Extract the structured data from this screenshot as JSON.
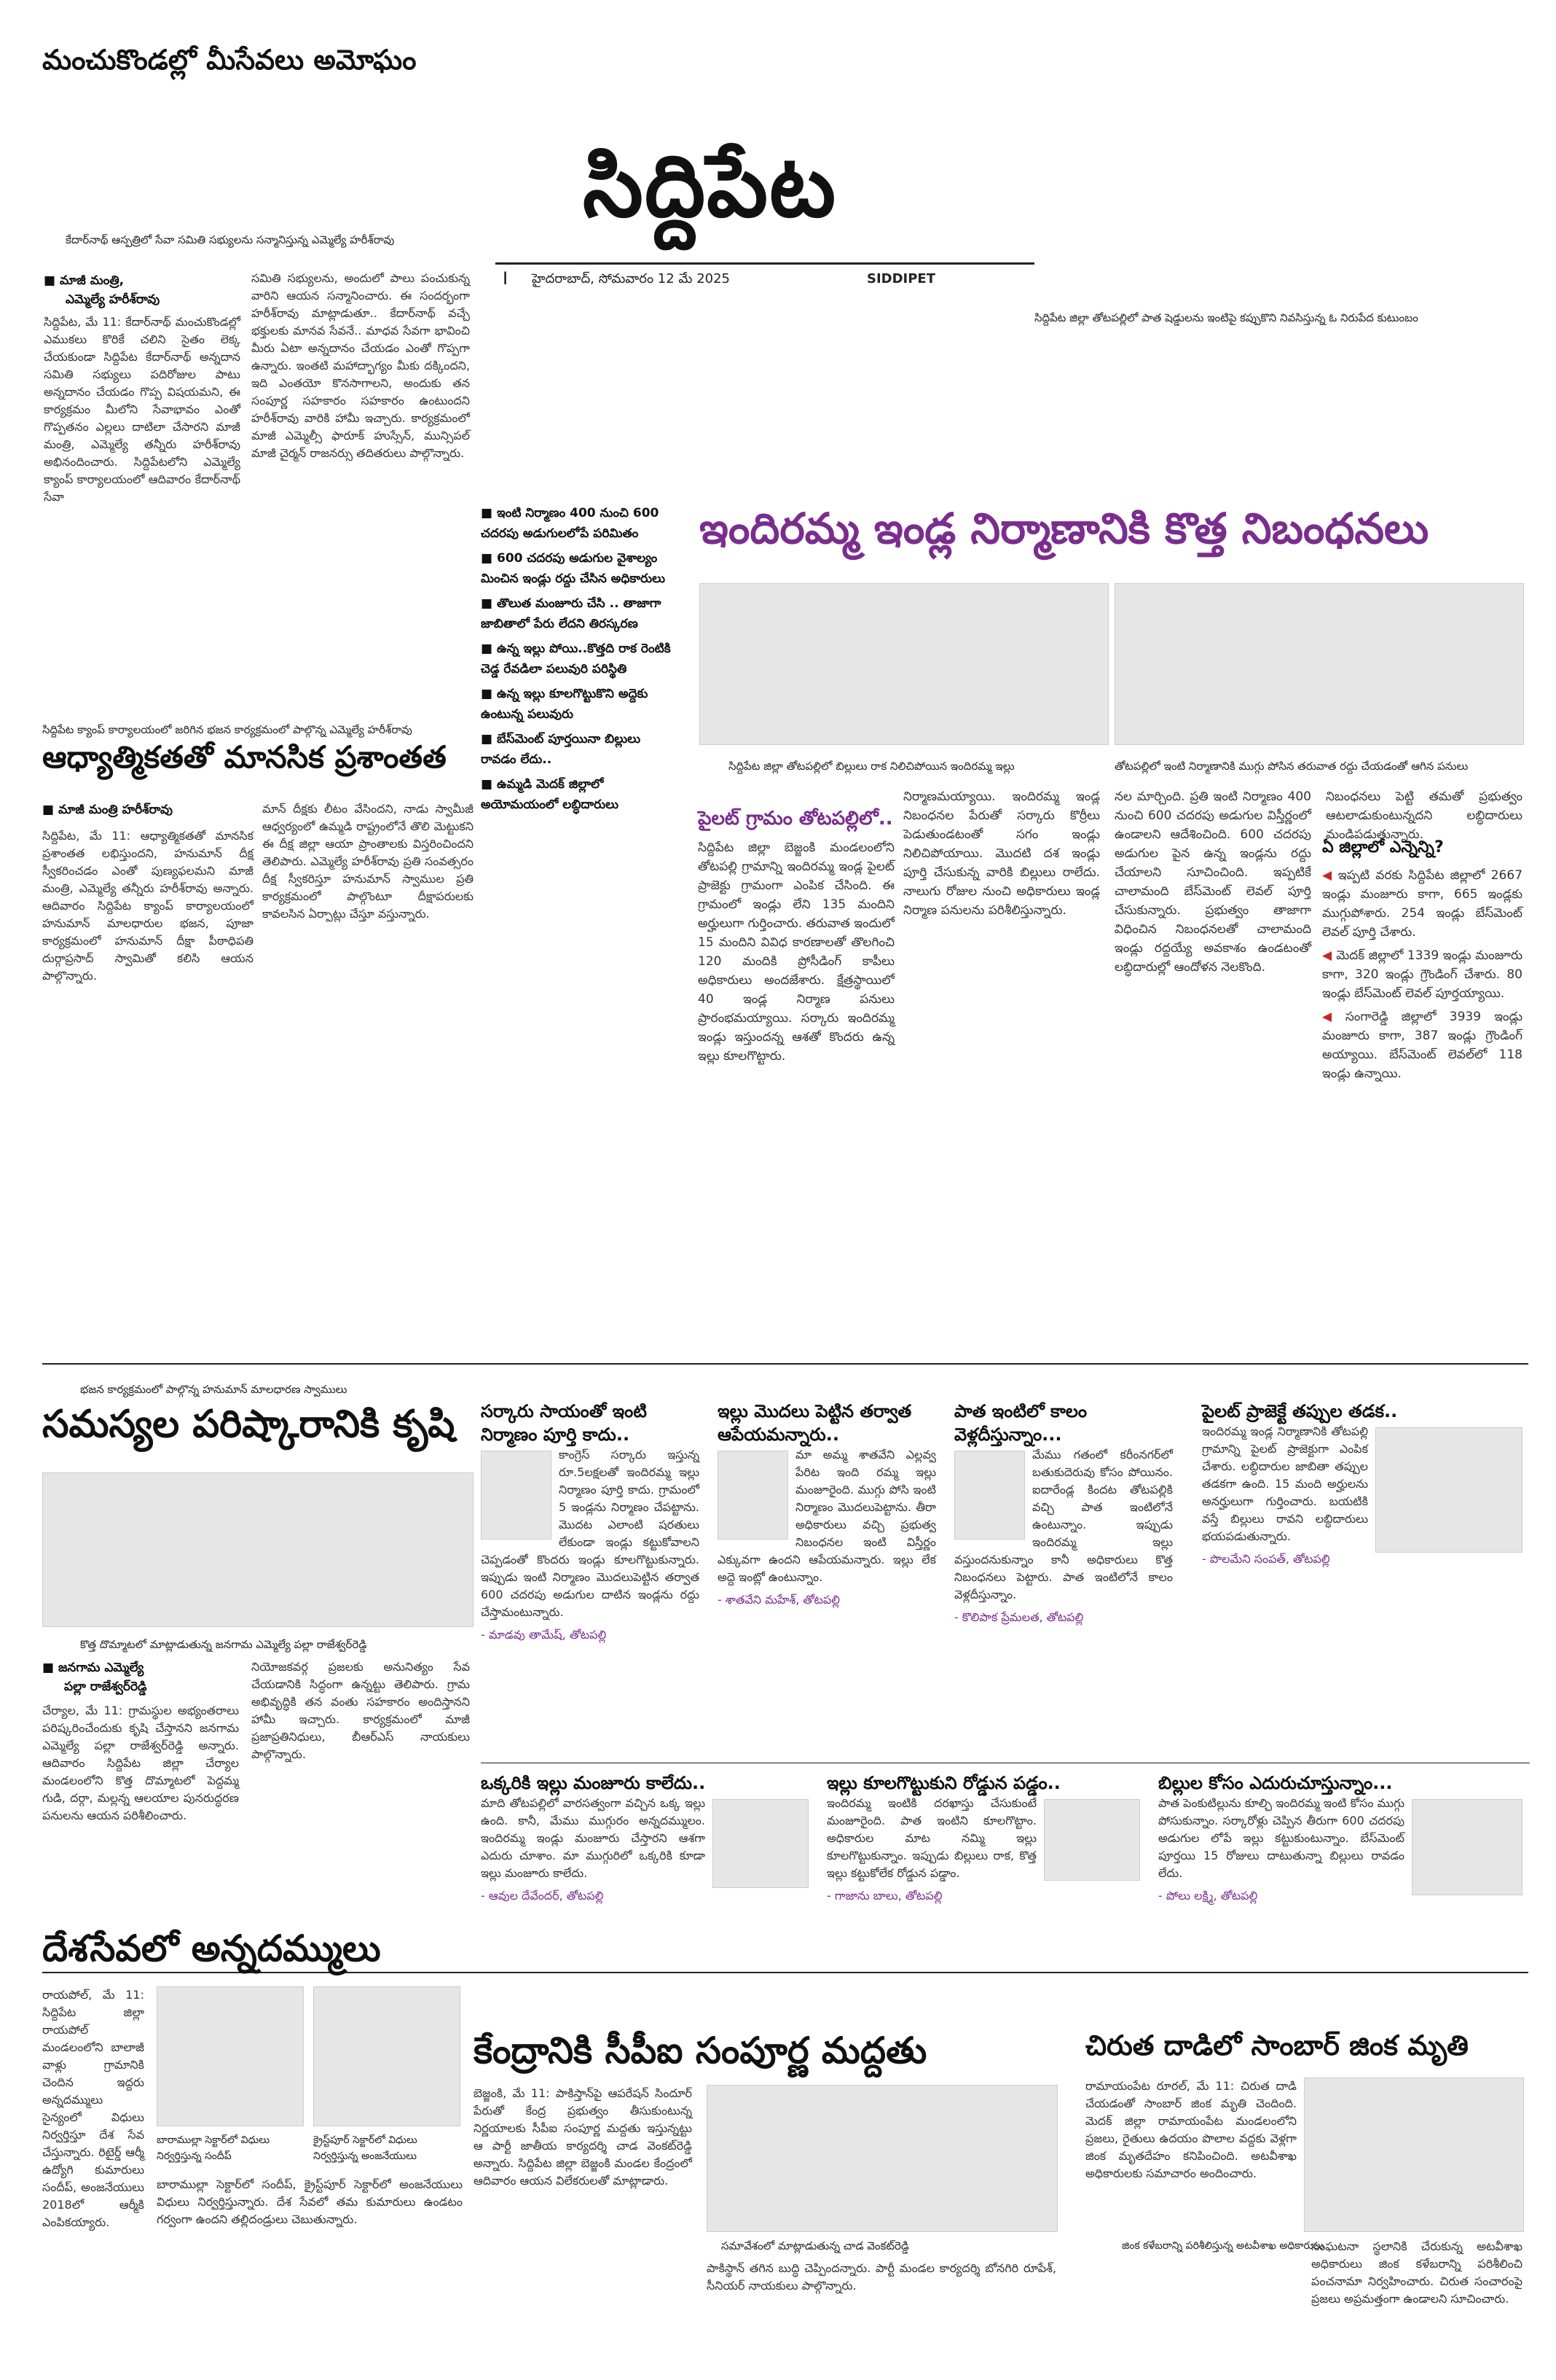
{
  "masthead": {
    "kicker": "మంచుకొండల్లో మీసేవలు అమోఘం",
    "title": "సిద్దిపేట",
    "mark": "I",
    "dateline": "హైదరాబాద్, సోమవారం 12 మే 2025",
    "edition": "SIDDIPET"
  },
  "top_left_story": {
    "caption": "కేదార్‌నాథ్ ఆస్పత్రిలో సేవా సమితి సభ్యులను సన్మానిస్తున్న ఎమ్మెల్యే హరీశ్‌రావు",
    "byline1": "మాజీ మంత్రి,",
    "byline2": "ఎమ్మెల్యే హరీశ్‌రావు",
    "col1": "సిద్దిపేట, మే 11: కేదార్‌నాథ్ మంచుకొండల్లో ఎముకలు కొరికే చలిని సైతం లెక్క చేయకుండా సిద్దిపేట కేదార్‌నాథ్ అన్నదాన సమితి సభ్యులు పదిరోజుల పాటు అన్నదానం చేయడం గొప్ప విషయమని, ఈ కార్యక్రమం మీలోని సేవాభావం ఎంతో గొప్పతనం ఎల్లలు దాటిలా చేసారని మాజీ మంత్రి, ఎమ్మెల్యే తన్నీరు హరీశ్‌రావు అభినందించారు. సిద్దిపేటలోని ఎమ్మెల్యే క్యాంప్ కార్యాలయంలో ఆదివారం కేదార్‌నాథ్ సేవా",
    "col2": "సమితి సభ్యులను, అందులో పాలు పంచుకున్న వారిని ఆయన సన్మానించారు. ఈ సందర్భంగా హరీశ్‌రావు మాట్లాడుతూ.. కేదార్‌నాథ్ వచ్చే భక్తులకు మానవ సేవనే.. మాధవ సేవగా భావించి మీరు ఏటా అన్నదానం చేయడం ఎంతో గొప్పగా ఉన్నారు. ఇంతటి మహాద్భాగ్యం మీకు దక్కిందని, ఇది ఎంతయో కొనసాగాలని, అందుకు తన సంపూర్ణ సహకారం సహకారం ఉంటుందని హరీశ్‌రావు వారికి హామీ ఇచ్చారు. కార్యక్రమంలో మాజీ ఎమ్మెల్సీ ఫారూక్ హుస్సేన్, మున్సిపల్ మాజీ చైర్మన్ రాజనర్సు తదితరులు పాల్గొన్నారు."
  },
  "top_right_caption": "సిద్దిపేట జిల్లా తోటపల్లిలో పాత షెడ్డులను ఇంటిపై కప్పుకొని నివసిస్తున్న ఓ నిరుపేద కుటుంబం",
  "indiramma": {
    "headline": "ఇందిరమ్మ ఇండ్ల నిర్మాణానికి కొత్త నిబంధనలు",
    "bullets": [
      "ఇంటి నిర్మాణం 400 నుంచి 600 చదరపు అడుగులలోపే పరిమితం",
      "600 చదరపు అడుగుల వైశాల్యం మించిన ఇండ్లు రద్దు చేసిన అధికారులు",
      "తొలుత మంజూరు చేసి .. తాజాగా జాబితాలో పేరు లేదని తిరస్కరణ",
      "ఉన్న ఇల్లు పోయి..కొత్తది రాక రెంటికి చెడ్డ రేవడిలా పలువురి పరిస్థితి",
      "ఉన్న ఇల్లు కూలగొట్టుకొని అద్దెకు ఉంటున్న పలువురు",
      "బేస్‌మెంట్ పూర్తయినా బిల్లులు రావడం లేదు..",
      "ఉమ్మడి మెదక్ జిల్లాలో అయోమయంలో లబ్ధిదారులు"
    ],
    "photo_caption_1": "సిద్దిపేట జిల్లా తోటపల్లిలో బిల్లులు రాక నిలిచిపోయిన ఇందిరమ్మ ఇల్లు",
    "photo_caption_2": "తోటపల్లిలో ఇంటి నిర్మాణానికి ముగ్గు పోసిన తరువాత రద్దు చేయడంతో ఆగిన పనులు",
    "col_a_kicker": "పైలట్ గ్రామం తోటపల్లిలో..",
    "col_a": "సిద్దిపేట జిల్లా బెజ్జంకి మండలంలోని తోటపల్లి గ్రామాన్ని ఇందిరమ్మ ఇండ్ల పైలట్ ప్రాజెక్టు గ్రామంగా ఎంపిక చేసింది. ఈ గ్రామంలో ఇండ్లు లేని 135 మందిని అర్హులుగా గుర్తించారు. తరువాత ఇందులో 15 మందిని వివిధ కారణాలతో తొలగించి 120 మందికి ప్రోసీడింగ్ కాపీలు అధికారులు అందజేశారు. క్షేత్రస్థాయిలో 40 ఇండ్ల నిర్మాణ పనులు ప్రారంభమయ్యాయి. సర్కారు ఇందిరమ్మ ఇండ్లు ఇస్తుందన్న ఆశతో కొందరు ఉన్న ఇల్లు కూలగొట్టారు.",
    "col_b": "నిర్మాణమయ్యాయి. ఇందిరమ్మ ఇండ్ల నిబంధనల పేరుతో సర్కారు కొర్రీలు పెడుతుండటంతో సగం ఇండ్లు నిలిచిపోయాయి. మొదటి దశ ఇండ్లు పూర్తి చేసుకున్న వారికి బిల్లులు రాలేదు. నాలుగు రోజుల నుంచి అధికారులు ఇండ్ల నిర్మాణ పనులను పరిశీలిస్తున్నారు.",
    "col_c": "నల మార్చింది. ప్రతి ఇంటి నిర్మాణం 400 నుంచి 600 చదరపు అడుగుల విస్తీర్ణంలో ఉండాలని ఆదేశించింది. 600 చదరపు అడుగుల పైన ఉన్న ఇండ్లను రద్దు చేయాలని సూచించింది. ఇప్పటికే చాలామంది బేస్‌మెంట్ లెవల్ పూర్తి చేసుకున్నారు. ప్రభుత్వం తాజాగా విధించిన నిబంధనలతో చాలామంది ఇండ్లు రద్దయ్యే అవకాశం ఉండటంతో లబ్ధిదారుల్లో ఆందోళన నెలకొంది.",
    "col_d": "నిబంధనలు పెట్టి తమతో ప్రభుత్వం ఆటలాడుకుంటున్నదని లబ్ధిదారులు మండిపడుతున్నారు.",
    "stats_title": "ఏ జిల్లాలో ఎన్నెన్ని?",
    "stats": [
      "ఇప్పటి వరకు సిద్దిపేట జిల్లాలో 2667 ఇండ్లు మంజూరు కాగా, 665 ఇండ్లకు ముగ్గుపోశారు. 254 ఇండ్లు బేస్‌మెంట్ లెవల్ పూర్తి చేశారు.",
      "మెదక్ జిల్లాలో 1339 ఇండ్లు మంజూరు కాగా, 320 ఇండ్లు గ్రౌండింగ్ చేశారు. 80 ఇండ్లు బేస్‌మెంట్ లెవల్ పూర్తయ్యాయి.",
      "సంగారెడ్డి జిల్లాలో 3939 ఇండ్లు మంజూరు కాగా, 387 ఇండ్లు గ్రౌండింగ్ అయ్యాయి. బేస్‌మెంట్ లెవల్‌లో 118 ఇండ్లు ఉన్నాయి."
    ]
  },
  "spiritual": {
    "caption": "సిద్దిపేట క్యాంప్ కార్యాలయంలో జరిగిన భజన కార్యక్రమంలో పాల్గొన్న ఎమ్మెల్యే హరీశ్‌రావు",
    "headline": "ఆధ్యాత్మికతతో మానసిక ప్రశాంతత",
    "byline": "మాజీ మంత్రి హరీశ్‌రావు",
    "col1": "సిద్దిపేట, మే 11: ఆధ్యాత్మికతతో మానసిక ప్రశాంతత లభిస్తుందని, హనుమాన్ దీక్ష స్వీకరించడం ఎంతో పుణ్యఫలమని మాజీ మంత్రి, ఎమ్మెల్యే తన్నీరు హరీశ్‌రావు అన్నారు. ఆదివారం సిద్దిపేట క్యాంప్ కార్యాలయంలో హనుమాన్ మాలధారుల భజన, పూజా కార్యక్రమంలో హనుమాన్ దీక్షా పీఠాధిపతి దుర్గాప్రసాద్ స్వామితో కలిసి ఆయన పాల్గొన్నారు.",
    "col2": "మాన్ దీక్షకు లీటం వేసిందని, నాడు స్వామీజీ ఆధ్వర్యంలో ఉమ్మడి రాష్ట్రంలోనే తొలి మెట్టుకని ఈ దీక్ష జిల్లా ఆయా ప్రాంతాలకు విస్తరించిందని తెలిపారు. ఎమ్మెల్యే హరీశ్‌రావు ప్రతి సంవత్సరం దీక్ష స్వీకరిస్తూ హనుమాన్ స్వాముల ప్రతి కార్యక్రమంలో పాల్గొంటూ దీక్షాపరులకు కావలసిన ఏర్పాట్లు చేస్తూ వస్తున్నారు."
  },
  "problems": {
    "caption": "భజన కార్యక్రమంలో పాల్గొన్న హనుమాన్ మాలధారణ స్వాములు",
    "headline": "సమస్యల పరిష్కారానికి కృషి",
    "caption2": "కొత్త దొమ్మాటలో మాట్లాడుతున్న జనగామ ఎమ్మెల్యే పల్లా రాజేశ్వర్‌రెడ్డి",
    "byline1": "జనగామ ఎమ్మెల్యే",
    "byline2": "పల్లా రాజేశ్వర్‌రెడ్డి",
    "col1": "చేర్యాల, మే 11: గ్రామస్థుల అభ్యంతరాలు పరిష్కరించేందుకు కృషి చేస్తానని జనగామ ఎమ్మెల్యే పల్లా రాజేశ్వర్‌రెడ్డి అన్నారు. ఆదివారం సిద్దిపేట జిల్లా చేర్యాల మండలంలోని కొత్త దొమ్మాటలో పెద్దమ్మ గుడి, దర్గా, మల్లన్న ఆలయాల పునరుద్ధరణ పనులను ఆయన పరిశీలించారు.",
    "col2": "నియోజకవర్గ ప్రజలకు అనునిత్యం సేవ చేయడానికి సిద్ధంగా ఉన్నట్టు తెలిపారు. గ్రామ అభివృద్ధికి తన వంతు సహకారం అందిస్తానని హామీ ఇచ్చారు. కార్యక్రమంలో మాజీ ప్రజాప్రతినిధులు, బీఆర్‌ఎస్ నాయకులు పాల్గొన్నారు."
  },
  "mid_stories": [
    {
      "headline": "సర్కారు సాయంతో ఇంటి నిర్మాణం పూర్తి కాదు..",
      "body": "కాంగ్రెస్ సర్కారు ఇస్తున్న రూ.5లక్షలతో ఇందిరమ్మ ఇల్లు నిర్మాణం పూర్తి కాదు. గ్రామంలో 5 ఇండ్లను నిర్మాణం చేపట్టాను. మొదట ఎలాంటి షరతులు లేకుండా ఇండ్లు కట్టుకోవాలని చెప్పడంతో కొందరు ఇండ్లు కూలగొట్టుకున్నారు. ఇప్పుడు ఇంటి నిర్మాణం మొదలుపెట్టిన తర్వాత 600 చదరపు అడుగుల దాటిన ఇండ్లను రద్దు చేస్తామంటున్నారు.",
      "author": "- మాడవు తామేష్, తోటపల్లి"
    },
    {
      "headline": "ఇల్లు మొదలు పెట్టిన తర్వాత ఆపేయమన్నారు..",
      "body": "మా అమ్మ శాతవేని ఎల్లవ్వ పేరిట ఇంది రమ్మ ఇల్లు మంజూరైంది. ముగ్గు పోసి ఇంటి నిర్మాణం మొదలుపెట్టాను. తీరా అధికారులు వచ్చి ప్రభుత్వ నిబంధనల ఇంటి విస్తీర్ణం ఎక్కువగా ఉందని ఆపేయమన్నారు. ఇల్లు లేక అద్దె ఇంట్లో ఉంటున్నాం.",
      "author": "- శాతవేని మహేశ్, తోటపల్లి"
    },
    {
      "headline": "పాత ఇంటిలో కాలం వెళ్లదీస్తున్నాం...",
      "body": "మేము గతంలో కరీంనగర్‌లో బతుకుదెరువు కోసం పోయినం. ఐదారేండ్ల కిందట తోటపల్లికి వచ్చి పాత ఇంటిలోనే ఉంటున్నాం. ఇప్పుడు ఇందిరమ్మ ఇల్లు వస్తుందనుకున్నాం కానీ అధికారులు కొత్త నిబంధనలు పెట్టారు. పాత ఇంటిలోనే కాలం వెళ్లదీస్తున్నాం.",
      "author": "- కొలిపాక ప్రేమలత, తోటపల్లి"
    },
    {
      "headline": "పైలట్ ప్రాజెక్టే తప్పుల తడక..",
      "body": "ఇందిరమ్మ ఇండ్ల నిర్మాణానికి తోటపల్లి గ్రామాన్ని పైలట్ ప్రాజెక్టుగా ఎంపిక చేశారు. లబ్ధిదారుల జాబితా తప్పుల తడకగా ఉంది. 15 మంది అర్హులను అనర్హులుగా గుర్తించారు. బయటికి వస్తే బిల్లులు రావని లబ్ధిదారులు భయపడుతున్నారు.",
      "author": "- పొలమేని సంపత్, తోటపల్లి"
    },
    {
      "headline": "ఒక్కరికి ఇల్లు మంజూరు కాలేదు..",
      "body": "మాది తోటపల్లిలో వారసత్వంగా వచ్చిన ఒక్క ఇల్లు ఉంది. కానీ, మేము ముగ్గురం అన్నదమ్ములం. ఇందిరమ్మ ఇండ్లు మంజూరు చేస్తారని ఆశగా ఎదురు చూశాం. మా ముగ్గురిలో ఒక్కరికి కూడా ఇల్లు మంజూరు కాలేదు.",
      "author": "- ఆవుల దేవేందర్, తోటపల్లి"
    },
    {
      "headline": "ఇల్లు కూలగొట్టుకుని రోడ్డున పడ్డం..",
      "body": "ఇందిరమ్మ ఇంటికి దరఖాస్తు చేసుకుంటే మంజూరైంది. పాత ఇంటిని కూలగొట్టాం. అధికారుల మాట నమ్మి ఇల్లు కూలగొట్టుకున్నాం. ఇప్పుడు బిల్లులు రాక, కొత్త ఇల్లు కట్టుకోలేక రోడ్డున పడ్డాం.",
      "author": "- గాజాను బాలు, తోటపల్లి"
    },
    {
      "headline": "బిల్లుల కోసం ఎదురుచూస్తున్నాం...",
      "body": "పాత పెంకుటిల్లును కూల్చి ఇందిరమ్మ ఇంటి కోసం ముగ్గు పోసుకున్నాం. సర్కారోళ్లు చెప్పిన తీరుగా 600 చదరపు అడుగుల లోపే ఇల్లు కట్టుకుంటున్నాం. బేస్‌మెంట్ పూర్తయి 15 రోజులు దాటుతున్నా బిల్లులు రావడం లేదు.",
      "author": "- పోలు లక్ష్మి, తోటపల్లి"
    }
  ],
  "bottom_left": {
    "headline": "దేశసేవలో అన్నదమ్ములు",
    "body": "రాయపోల్, మే 11: సిద్దిపేట జిల్లా రాయపోల్ మండలంలోని బాలాజీ వాళ్లు గ్రామానికి చెందిన ఇద్దరు అన్నదమ్ములు సైన్యంలో విధులు నిర్వర్తిస్తూ దేశ సేవ చేస్తున్నారు. రిటైర్డ్ ఆర్మీ ఉద్యోగి కుమారులు సందీప్, అంజనేయులు 2018లో ఆర్మీకి ఎంపికయ్యారు.",
    "caption1": "బారాముల్లా సెక్టార్‌లో విధులు నిర్వర్తిస్తున్న సందీప్",
    "caption2": "క్రైస్ట్‌పూర్ సెక్టార్‌లో విధులు నిర్వర్తిస్తున్న అంజనేయులు",
    "body2": "బారాముల్లా సెక్టార్‌లో సందీప్, క్రైస్ట్‌పూర్ సెక్టార్‌లో అంజనేయులు విధులు నిర్వర్తిస్తున్నారు. దేశ సేవలో తమ కుమారులు ఉండటం గర్వంగా ఉందని తల్లిదండ్రులు చెబుతున్నారు."
  },
  "cpi": {
    "headline": "కేంద్రానికి సీపీఐ సంపూర్ణ మద్దతు",
    "body": "బెజ్జంకి, మే 11: పాకిస్తాన్‌పై ఆపరేషన్ సిందూర్ పేరుతో కేంద్ర ప్రభుత్వం తీసుకుంటున్న నిర్ణయాలకు సీపీఐ సంపూర్ణ మద్దతు ఇస్తున్నట్టు ఆ పార్టీ జాతీయ కార్యదర్శి చాడ వెంకట్‌రెడ్డి అన్నారు. సిద్దిపేట జిల్లా బెజ్జంకి మండల కేంద్రంలో ఆదివారం ఆయన విలేకరులతో మాట్లాడారు.",
    "caption": "సమావేశంలో మాట్లాడుతున్న చాడ వెంకట్‌రెడ్డి",
    "body2": "పాకిస్థాన్ తగిన బుద్ధి చెప్పిందన్నారు. పార్టీ మండల కార్యదర్శి బోనగిరి రూపేశ్, సీనియర్ నాయకులు పాల్గొన్నారు."
  },
  "deer": {
    "headline": "చిరుత దాడిలో సాంబార్ జింక మృతి",
    "body": "రామాయంపేట రూరల్, మే 11: చిరుత దాడి చేయడంతో సాంబార్ జింక మృతి చెందింది. మెదక్ జిల్లా రామాయంపేట మండలంలోని ప్రజలు, రైతులు ఉదయం పొలాల వద్దకు వెళ్లగా జింక మృతదేహం కనిపించింది. అటవీశాఖ అధికారులకు సమాచారం అందించారు.",
    "caption": "జింక కళేబరాన్ని పరిశీలిస్తున్న అటవీశాఖ అధికారులు",
    "body2": "సంఘటనా స్థలానికి చేరుకున్న అటవీశాఖ అధికారులు జింక కళేబరాన్ని పరిశీలించి పంచనామా నిర్వహించారు. చిరుత సంచారంపై ప్రజలు అప్రమత్తంగా ఉండాలని సూచించారు."
  }
}
